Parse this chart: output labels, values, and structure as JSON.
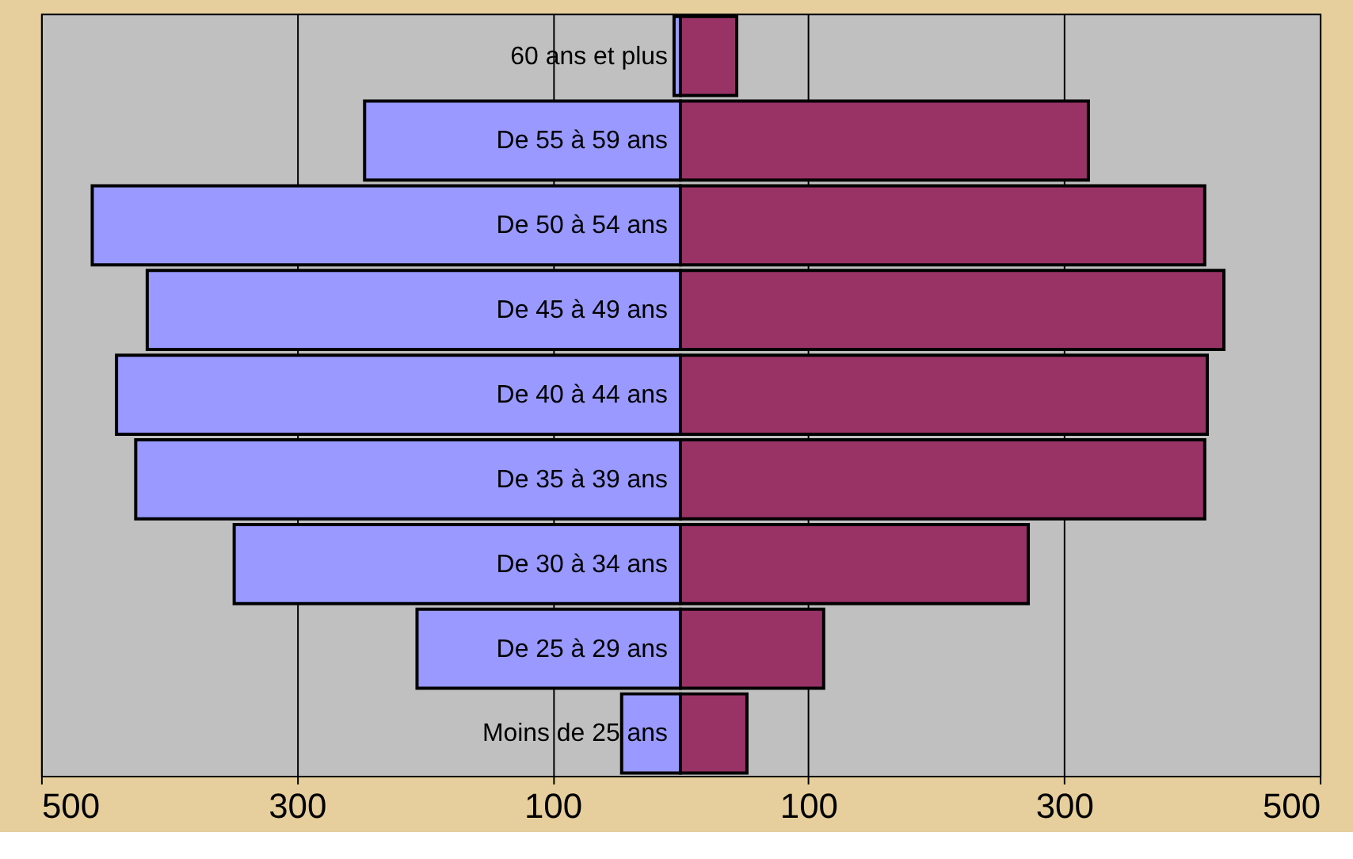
{
  "chart_data": {
    "type": "bar",
    "orientation": "horizontal",
    "stacked": true,
    "categories": [
      "60 ans et plus",
      "De 55 à 59 ans",
      "De 50 à 54 ans",
      "De 45 à 49 ans",
      "De 40 à 44 ans",
      "De 35 à 39 ans",
      "De 30 à 34 ans",
      "De 25 à 29 ans",
      "Moins de 25 ans"
    ],
    "series": [
      {
        "color": "#9999ff",
        "values": [
          -5,
          -247,
          -460,
          -417,
          -441,
          -426,
          -349,
          -206,
          -46
        ]
      },
      {
        "color": "#993366",
        "values": [
          44,
          319,
          410,
          425,
          412,
          410,
          272,
          112,
          52
        ]
      }
    ],
    "xlim": [
      -500,
      500
    ],
    "xticks": [
      {
        "value": -500,
        "label": "500"
      },
      {
        "value": -300,
        "label": "300"
      },
      {
        "value": -100,
        "label": "100"
      },
      {
        "value": 100,
        "label": "100"
      },
      {
        "value": 300,
        "label": "300"
      },
      {
        "value": 500,
        "label": "500"
      }
    ],
    "grid": "x",
    "legend": false
  }
}
